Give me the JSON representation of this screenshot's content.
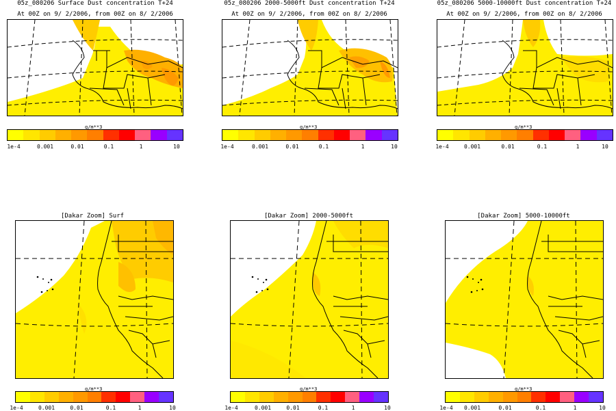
{
  "colorbar": {
    "colors": [
      "#ffff00",
      "#ffe600",
      "#ffcc00",
      "#ffb000",
      "#ff9900",
      "#ff7f00",
      "#ff3000",
      "#ff0000",
      "#ff6080",
      "#9900ff",
      "#6633ff"
    ],
    "unit": "g/m**3",
    "ticks": [
      "1e-4",
      "0.001",
      "0.01",
      "0.1",
      "1",
      "10"
    ]
  },
  "panels": [
    {
      "id": "p1",
      "title": "05z_080206 Surface Dust concentration T+24",
      "subtitle": "At 00Z on 9/ 2/2006, from 00Z on 8/ 2/2006"
    },
    {
      "id": "p2",
      "title": "05z_080206 2000-5000ft Dust concentration T+24",
      "subtitle": "At 00Z on 9/ 2/2006, from 00Z on 8/ 2/2006"
    },
    {
      "id": "p3",
      "title": "05z_080206 5000-10000ft Dust concentration T+24",
      "subtitle": "At 00Z on 9/ 2/2006, from 00Z on 8/ 2/2006"
    },
    {
      "id": "p4",
      "title": "[Dakar Zoom] Surf"
    },
    {
      "id": "p5",
      "title": "[Dakar Zoom] 2000-5000ft"
    },
    {
      "id": "p6",
      "title": "[Dakar Zoom] 5000-10000ft"
    }
  ]
}
